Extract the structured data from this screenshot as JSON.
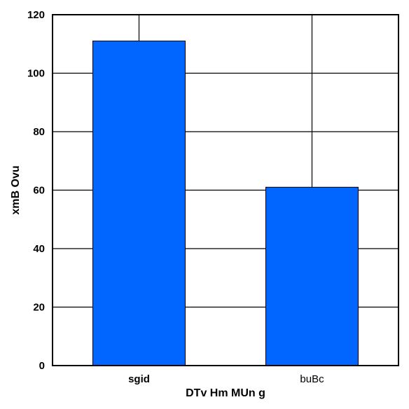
{
  "chart_data": {
    "type": "bar",
    "categories": [
      "sgid",
      "buBc"
    ],
    "category_bold": [
      true,
      false
    ],
    "values": [
      111,
      61
    ],
    "xlabel": "DTv Hm MUn g",
    "ylabel": "xmB Ovu",
    "ylim": [
      0,
      120
    ],
    "yticks": [
      0,
      20,
      40,
      60,
      80,
      100,
      120
    ],
    "grid": true,
    "bar_color": "#0066ff"
  }
}
